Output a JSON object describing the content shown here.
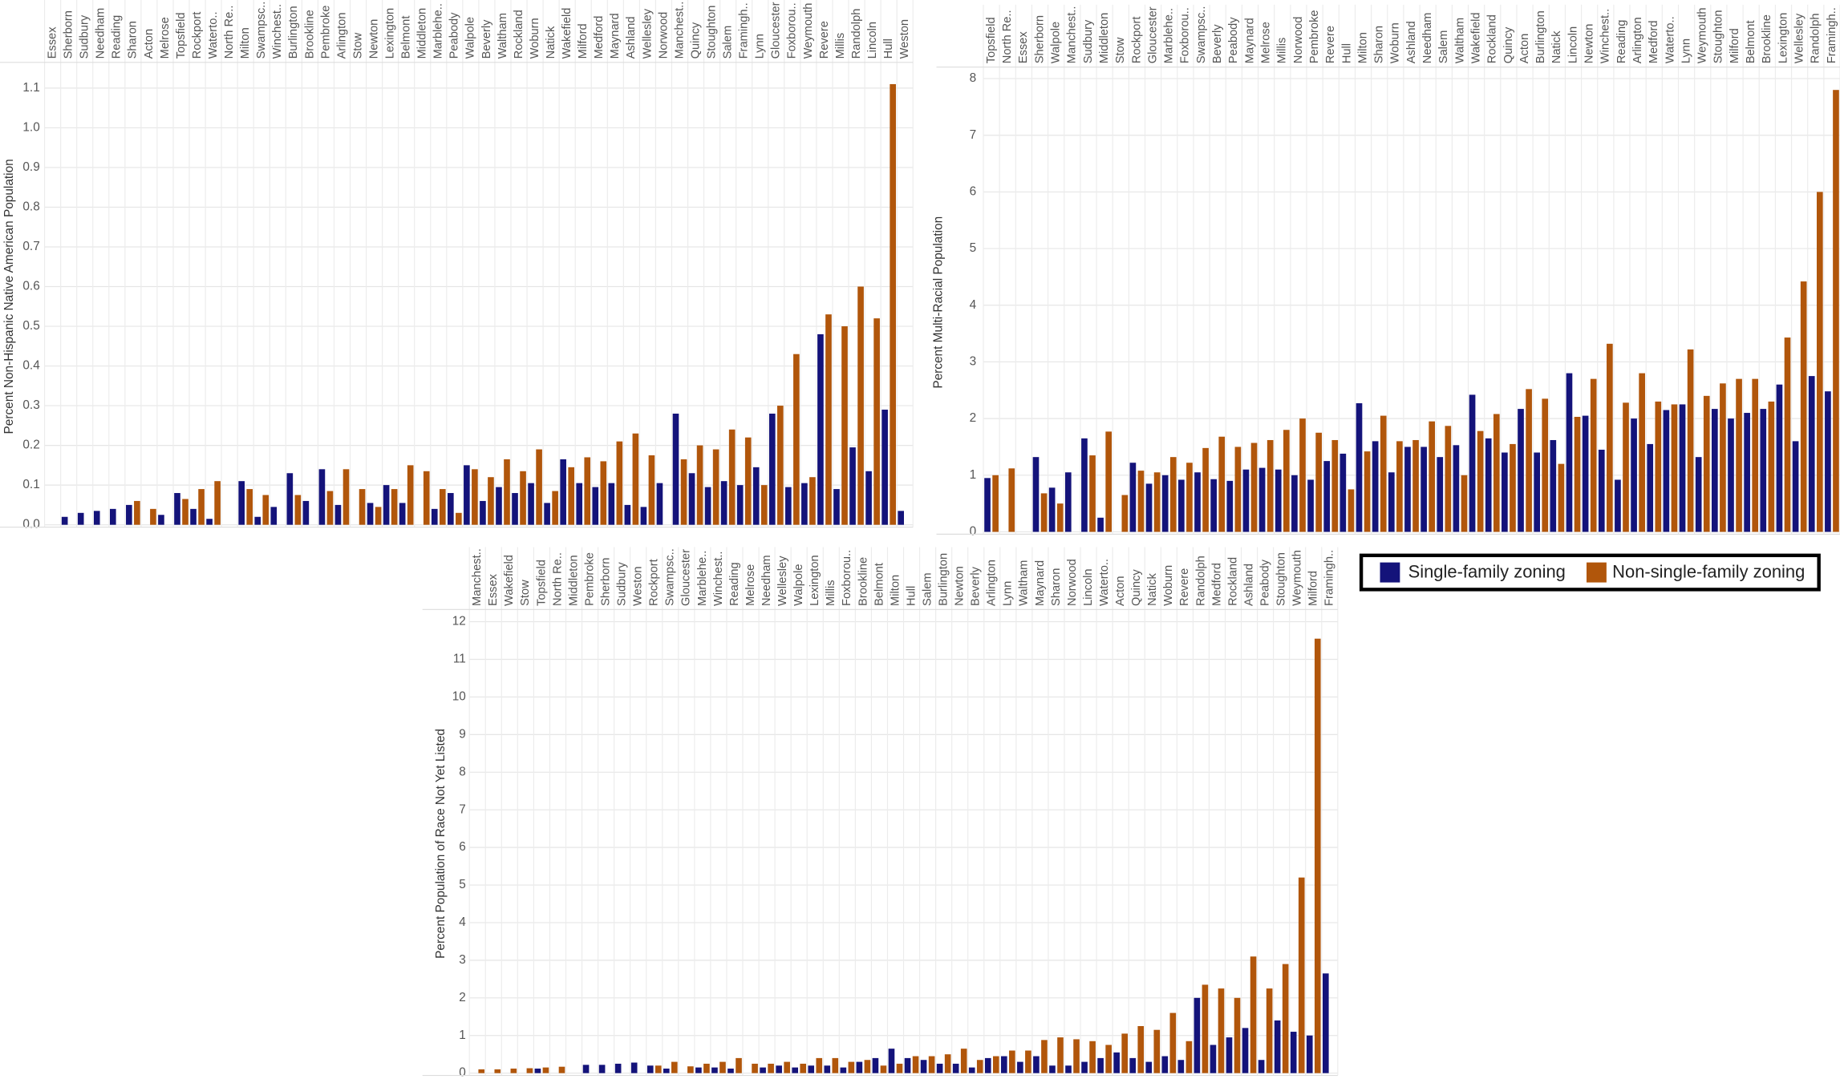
{
  "chart_data": [
    {
      "type": "bar",
      "y_label": "Percent Non-Hispanic Native American Population",
      "categories": [
        "Essex",
        "Sherborn",
        "Sudbury",
        "Needham",
        "Reading",
        "Sharon",
        "Acton",
        "Melrose",
        "Topsfield",
        "Rockport",
        "Waterto..",
        "North Re..",
        "Milton",
        "Swampsc..",
        "Winchest..",
        "Burlington",
        "Brookline",
        "Pembroke",
        "Arlington",
        "Stow",
        "Newton",
        "Lexington",
        "Belmont",
        "Middleton",
        "Marblehe..",
        "Peabody",
        "Walpole",
        "Beverly",
        "Waltham",
        "Rockland",
        "Woburn",
        "Natick",
        "Wakefield",
        "Milford",
        "Medford",
        "Maynard",
        "Ashland",
        "Wellesley",
        "Norwood",
        "Manchest..",
        "Quincy",
        "Stoughton",
        "Salem",
        "Framingh..",
        "Lynn",
        "Gloucester",
        "Foxborou..",
        "Weymouth",
        "Revere",
        "Millis",
        "Randolph",
        "Lincoln",
        "Hull",
        "Weston"
      ],
      "series": [
        {
          "name": "Single-family zoning",
          "color": "#14137a",
          "values": [
            null,
            0.02,
            0.03,
            0.035,
            0.04,
            0.05,
            null,
            0.025,
            0.08,
            0.04,
            0.015,
            null,
            0.11,
            0.02,
            0.045,
            0.13,
            0.06,
            0.14,
            0.05,
            null,
            0.055,
            0.1,
            0.055,
            null,
            0.04,
            0.08,
            0.15,
            0.06,
            0.095,
            0.08,
            0.105,
            0.055,
            0.165,
            0.105,
            0.095,
            0.105,
            0.05,
            0.045,
            0.105,
            0.28,
            0.13,
            0.095,
            0.11,
            0.1,
            0.145,
            0.28,
            0.095,
            0.105,
            0.48,
            0.09,
            0.195,
            0.135,
            0.29,
            0.035
          ]
        },
        {
          "name": "Non-single-family zoning",
          "color": "#b1560b",
          "values": [
            null,
            null,
            null,
            null,
            null,
            0.06,
            0.04,
            null,
            0.065,
            0.09,
            0.11,
            null,
            0.09,
            0.075,
            null,
            0.075,
            null,
            0.085,
            0.14,
            0.09,
            0.045,
            0.09,
            0.15,
            0.135,
            0.09,
            0.03,
            0.14,
            0.12,
            0.165,
            0.135,
            0.19,
            0.085,
            0.145,
            0.17,
            0.16,
            0.21,
            0.23,
            0.175,
            null,
            0.165,
            0.2,
            0.19,
            0.24,
            0.22,
            0.1,
            0.3,
            0.43,
            0.12,
            0.53,
            0.5,
            0.6,
            0.52,
            1.11,
            null
          ]
        }
      ],
      "ylim": [
        0,
        1.15
      ],
      "yticks": [
        {
          "value": 0,
          "label": "0.0"
        },
        0.1,
        0.2,
        0.3,
        0.4,
        0.5,
        0.6,
        0.7,
        0.8,
        0.9,
        {
          "value": 1,
          "label": "1.0"
        },
        1.1
      ],
      "grid": true
    },
    {
      "type": "bar",
      "y_label": "Percent Multi-Racial Population",
      "categories": [
        "Topsfield",
        "North Re..",
        "Essex",
        "Sherborn",
        "Walpole",
        "Manchest..",
        "Sudbury",
        "Middleton",
        "Stow",
        "Rockport",
        "Gloucester",
        "Marblehe..",
        "Foxborou..",
        "Swampsc..",
        "Beverly",
        "Peabody",
        "Maynard",
        "Melrose",
        "Millis",
        "Norwood",
        "Pembroke",
        "Revere",
        "Hull",
        "Milton",
        "Sharon",
        "Woburn",
        "Ashland",
        "Needham",
        "Salem",
        "Waltham",
        "Wakefield",
        "Rockland",
        "Quincy",
        "Acton",
        "Burlington",
        "Natick",
        "Lincoln",
        "Newton",
        "Winchest..",
        "Reading",
        "Arlington",
        "Medford",
        "Waterto..",
        "Lynn",
        "Weymouth",
        "Stoughton",
        "Milford",
        "Belmont",
        "Brookline",
        "Lexington",
        "Wellesley",
        "Randolph",
        "Framingh.."
      ],
      "series": [
        {
          "color": "#14137a",
          "values": [
            0.95,
            null,
            null,
            1.32,
            0.78,
            1.05,
            1.65,
            0.25,
            null,
            1.22,
            0.85,
            1.0,
            0.92,
            1.05,
            0.93,
            0.9,
            1.1,
            1.13,
            1.1,
            1.0,
            0.92,
            1.25,
            1.38,
            2.27,
            1.6,
            1.05,
            1.5,
            1.5,
            1.32,
            1.53,
            2.42,
            1.65,
            1.4,
            2.17,
            1.4,
            1.62,
            2.8,
            2.05,
            1.45,
            0.92,
            2.0,
            1.55,
            2.15,
            2.25,
            1.32,
            2.17,
            2.0,
            2.1,
            2.17,
            2.6,
            1.6,
            2.75,
            2.48
          ]
        },
        {
          "color": "#b1560b",
          "values": [
            1.0,
            1.12,
            null,
            0.68,
            0.5,
            null,
            1.35,
            1.77,
            0.65,
            1.08,
            1.05,
            1.32,
            1.22,
            1.48,
            1.68,
            1.5,
            1.57,
            1.62,
            1.8,
            2.0,
            1.75,
            1.62,
            0.75,
            1.42,
            2.05,
            1.6,
            1.62,
            1.95,
            1.87,
            1.0,
            1.78,
            2.08,
            1.55,
            2.52,
            2.35,
            1.2,
            2.03,
            2.7,
            3.32,
            2.28,
            2.8,
            2.3,
            2.25,
            3.22,
            2.4,
            2.62,
            2.7,
            2.7,
            2.3,
            3.43,
            4.42,
            6.0,
            7.8
          ]
        }
      ],
      "ylim": [
        0,
        8.1
      ],
      "yticks": [
        0,
        1,
        2,
        3,
        4,
        5,
        6,
        7,
        8
      ],
      "grid": true
    },
    {
      "type": "bar",
      "y_label": "Percent Population of Race Not Yet Listed",
      "categories": [
        "Manchest..",
        "Essex",
        "Wakefield",
        "Stow",
        "Topsfield",
        "North Re..",
        "Middleton",
        "Pembroke",
        "Sherborn",
        "Sudbury",
        "Weston",
        "Rockport",
        "Swampsc..",
        "Gloucester",
        "Marblehe..",
        "Winchest..",
        "Reading",
        "Melrose",
        "Needham",
        "Wellesley",
        "Walpole",
        "Lexington",
        "Millis",
        "Foxborou..",
        "Brookline",
        "Belmont",
        "Milton",
        "Hull",
        "Salem",
        "Burlington",
        "Newton",
        "Beverly",
        "Arlington",
        "Lynn",
        "Waltham",
        "Maynard",
        "Sharon",
        "Norwood",
        "Lincoln",
        "Waterto..",
        "Acton",
        "Quincy",
        "Natick",
        "Woburn",
        "Revere",
        "Randolph",
        "Medford",
        "Rockland",
        "Ashland",
        "Peabody",
        "Stoughton",
        "Weymouth",
        "Milford",
        "Framingh.."
      ],
      "series": [
        {
          "color": "#14137a",
          "values": [
            null,
            null,
            null,
            null,
            0.12,
            null,
            null,
            0.22,
            0.22,
            0.25,
            0.28,
            0.2,
            0.12,
            null,
            0.15,
            0.15,
            0.12,
            null,
            0.15,
            0.2,
            0.15,
            0.2,
            0.2,
            0.15,
            0.3,
            0.4,
            0.65,
            0.4,
            0.35,
            0.25,
            0.25,
            0.15,
            0.4,
            0.45,
            0.3,
            0.45,
            0.2,
            0.2,
            0.3,
            0.4,
            0.55,
            0.4,
            0.3,
            0.45,
            0.35,
            2.0,
            0.75,
            0.95,
            1.2,
            0.35,
            1.4,
            1.1,
            1.0,
            2.65
          ]
        },
        {
          "color": "#b1560b",
          "values": [
            0.1,
            0.1,
            0.12,
            0.13,
            0.15,
            0.17,
            null,
            null,
            null,
            null,
            null,
            0.2,
            0.3,
            0.18,
            0.25,
            0.3,
            0.4,
            0.25,
            0.25,
            0.3,
            0.25,
            0.4,
            0.4,
            0.3,
            0.35,
            0.2,
            0.25,
            0.45,
            0.45,
            0.5,
            0.65,
            0.35,
            0.45,
            0.6,
            0.6,
            0.88,
            0.95,
            0.9,
            0.85,
            0.75,
            1.05,
            1.25,
            1.15,
            1.6,
            0.85,
            2.35,
            2.25,
            2.0,
            3.1,
            2.25,
            2.9,
            5.2,
            11.55,
            null
          ]
        }
      ],
      "ylim": [
        0,
        12.2
      ],
      "yticks": [
        0,
        1,
        2,
        3,
        4,
        5,
        6,
        7,
        8,
        9,
        10,
        11,
        12
      ],
      "grid": true
    }
  ]
}
